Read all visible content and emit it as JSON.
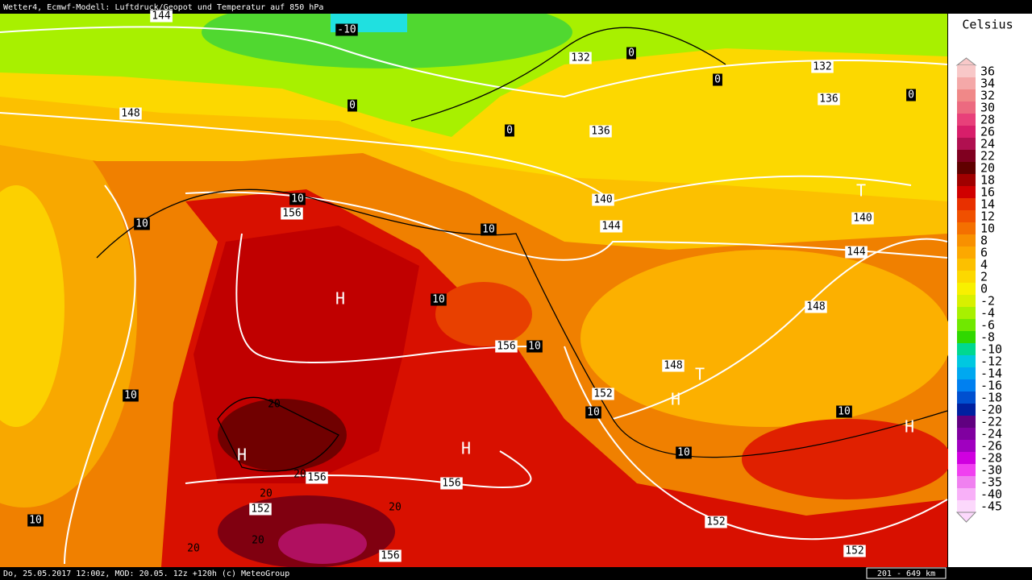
{
  "header": {
    "title": "Wetter4, Ecmwf-Modell: Luftdruck/Geopot und Temperatur auf 850 hPa"
  },
  "legend": {
    "unit": "Celsius",
    "levels": [
      36,
      34,
      32,
      30,
      28,
      26,
      24,
      22,
      20,
      18,
      16,
      14,
      12,
      10,
      8,
      6,
      4,
      2,
      0,
      -2,
      -4,
      -6,
      -8,
      -10,
      -12,
      -14,
      -16,
      -18,
      -20,
      -22,
      -24,
      -26,
      -28,
      -30,
      -35,
      -40,
      -45
    ],
    "colors": [
      "#f8c8c8",
      "#f4a8a8",
      "#f08888",
      "#ec6a80",
      "#e8407a",
      "#d81e6a",
      "#b01050",
      "#800020",
      "#600000",
      "#a00000",
      "#d00000",
      "#e83000",
      "#f05000",
      "#f47000",
      "#f89000",
      "#fca800",
      "#fcc000",
      "#fcd800",
      "#f8f000",
      "#d8f000",
      "#a8f000",
      "#70e800",
      "#30d800",
      "#00d890",
      "#00c8e0",
      "#00a8f0",
      "#0080f0",
      "#0050d0",
      "#0020a0",
      "#600080",
      "#8000a0",
      "#a000c0",
      "#d000e0",
      "#f040f0",
      "#f080f0",
      "#f8b0f8",
      "#fcd8fc"
    ]
  },
  "map_labels": {
    "geopotential": [
      "144",
      "132",
      "132",
      "148",
      "136",
      "136",
      "140",
      "156",
      "144",
      "140",
      "144",
      "148",
      "156",
      "148",
      "152",
      "156",
      "156",
      "152",
      "152",
      "152",
      "156"
    ],
    "isotherms": [
      "-10",
      "0",
      "0",
      "0",
      "0",
      "0",
      "10",
      "10",
      "10",
      "10",
      "10",
      "10",
      "10",
      "10",
      "10",
      "10"
    ],
    "isotherm_plain": [
      "20",
      "20",
      "20",
      "20",
      "20",
      "20"
    ],
    "pressure_centers": [
      "H",
      "H",
      "H",
      "H",
      "H",
      "T",
      "T"
    ]
  },
  "footer": {
    "run": "Do, 25.05.2017 12:00z, MOD: 20.05. 12z +120h (c) MeteoGroup",
    "scale": "201 - 649 km"
  }
}
